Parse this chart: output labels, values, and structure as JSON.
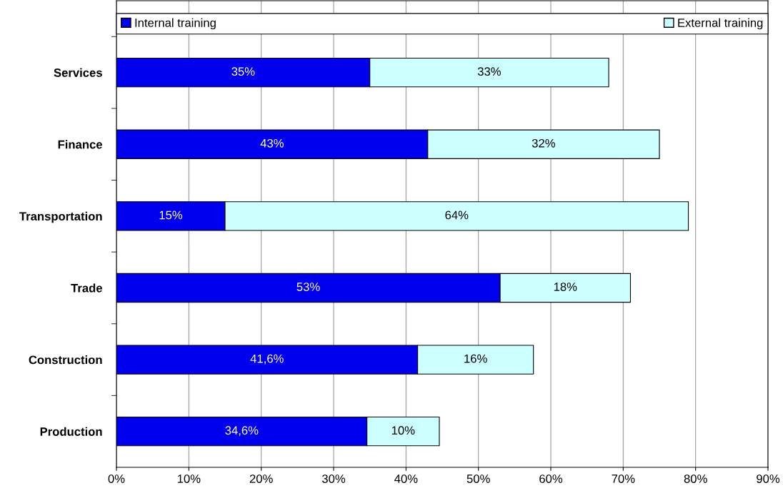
{
  "chart_data": {
    "type": "bar",
    "orientation": "horizontal",
    "stacked": true,
    "categories": [
      "Services",
      "Finance",
      "Transportation",
      "Trade",
      "Construction",
      "Production"
    ],
    "series": [
      {
        "name": "Internal training",
        "color": "#0000ee",
        "values": [
          35,
          43,
          15,
          53,
          41.6,
          34.6
        ],
        "value_labels": [
          "35%",
          "43%",
          "15%",
          "53%",
          "41,6%",
          "34,6%"
        ]
      },
      {
        "name": "External training",
        "color": "#ccffff",
        "values": [
          33,
          32,
          64,
          18,
          16,
          10
        ],
        "value_labels": [
          "33%",
          "32%",
          "64%",
          "18%",
          "16%",
          "10%"
        ]
      }
    ],
    "xlim": [
      0,
      90
    ],
    "xticks": [
      {
        "value": 0,
        "label": "0%"
      },
      {
        "value": 10,
        "label": "10%"
      },
      {
        "value": 20,
        "label": "20%"
      },
      {
        "value": 30,
        "label": "30%"
      },
      {
        "value": 40,
        "label": "40%"
      },
      {
        "value": 50,
        "label": "50%"
      },
      {
        "value": 60,
        "label": "60%"
      },
      {
        "value": 70,
        "label": "70%"
      },
      {
        "value": 80,
        "label": "80%"
      },
      {
        "value": 90,
        "label": "90%"
      }
    ],
    "grid": "x",
    "legend": "top"
  }
}
